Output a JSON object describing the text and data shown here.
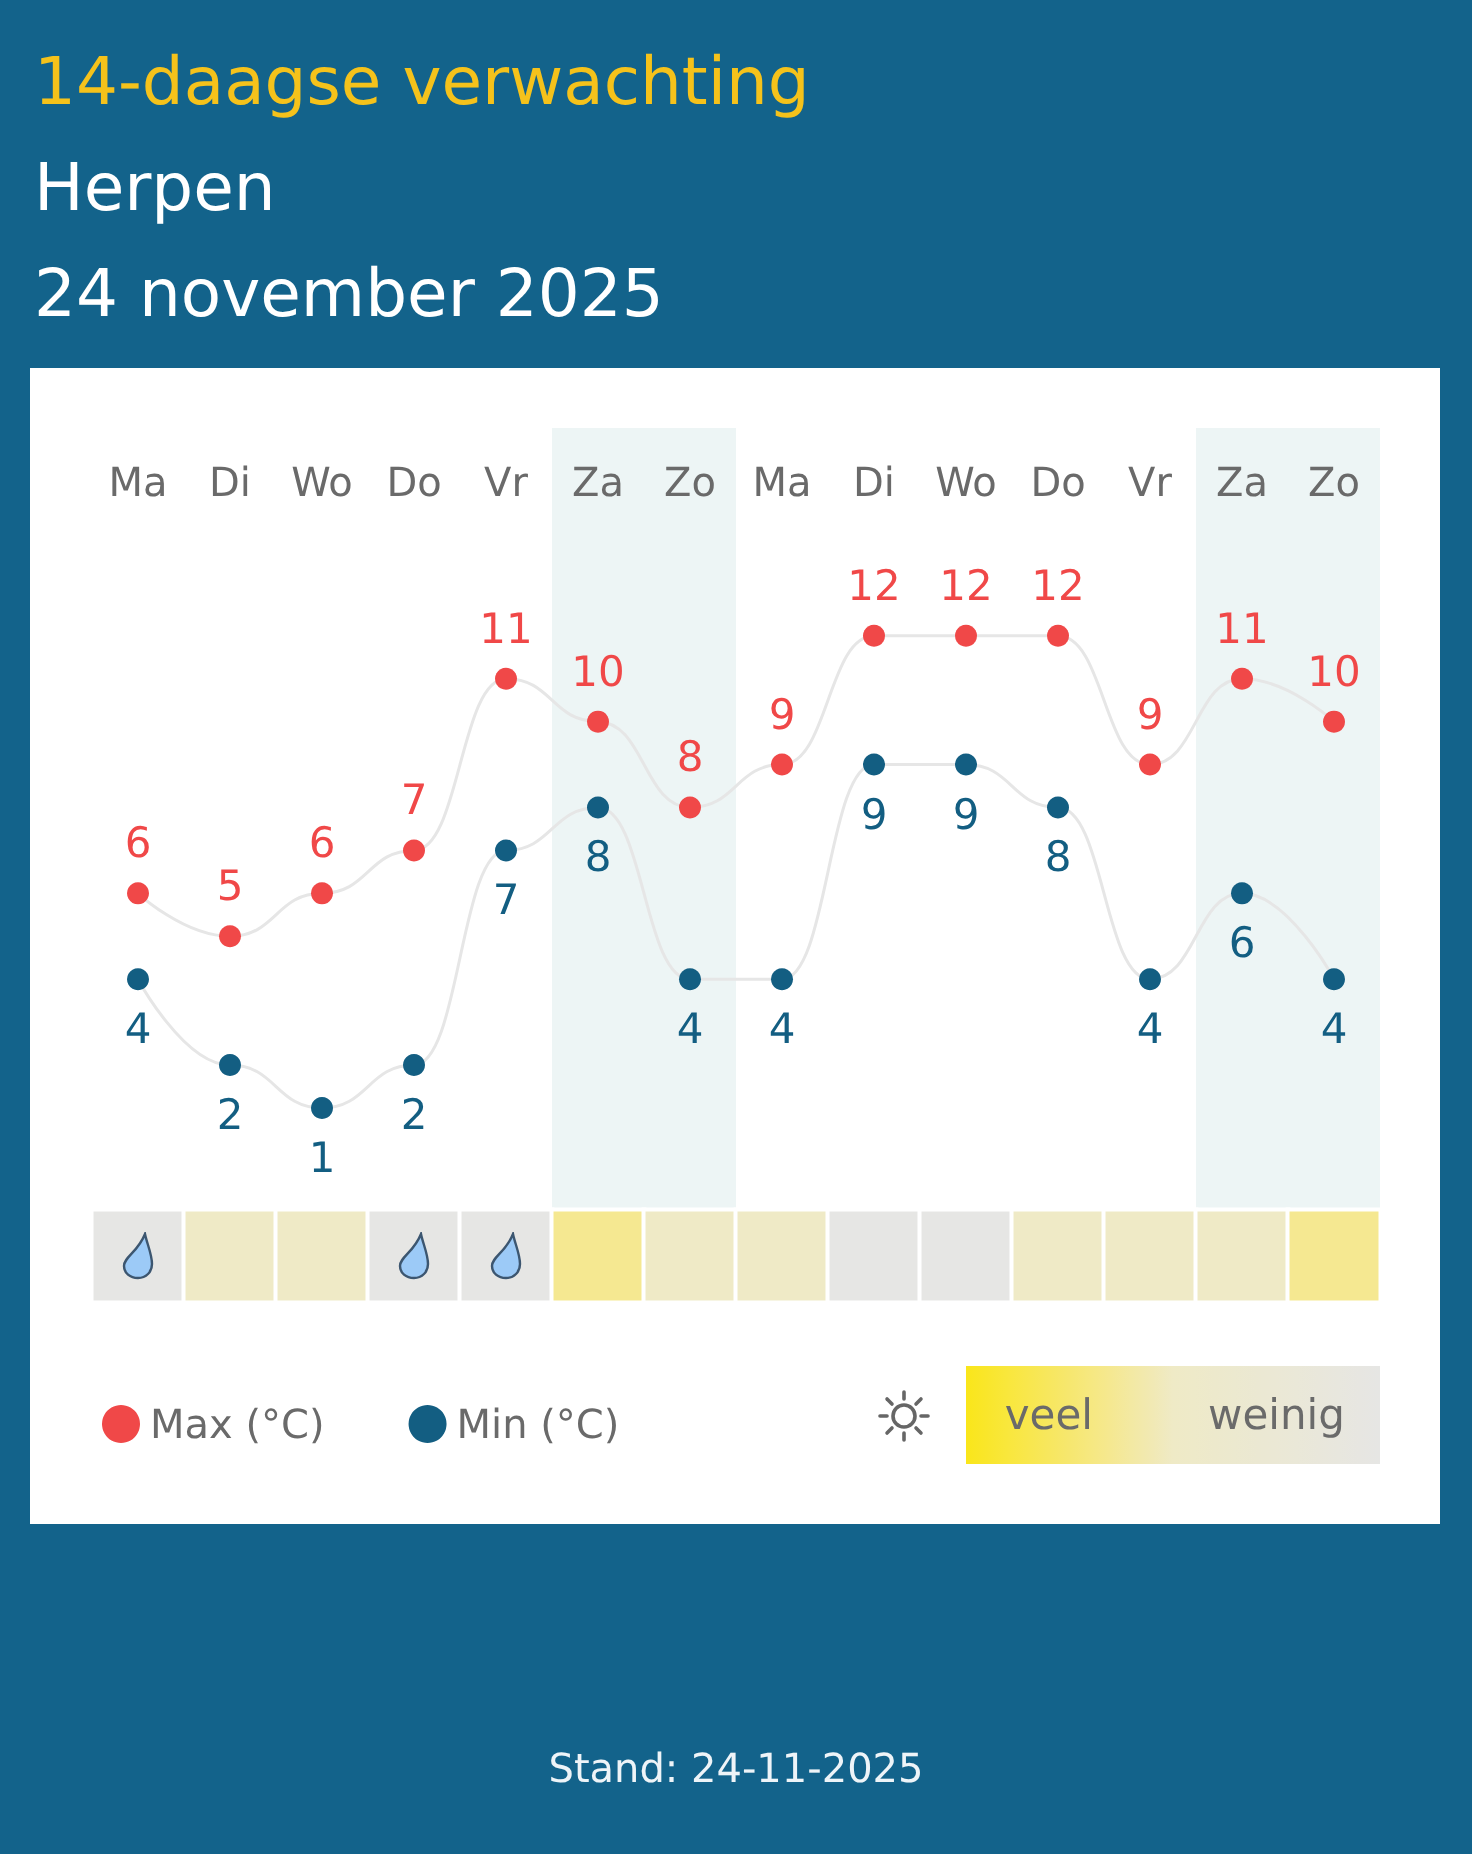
{
  "chart_data": [
    {
      "type": "line",
      "title": "14-daagse verwachting",
      "subtitle": "Herpen\n24 november 2025",
      "categories": [
        "Ma",
        "Di",
        "Wo",
        "Do",
        "Vr",
        "Za",
        "Zo",
        "Ma",
        "Di",
        "Wo",
        "Do",
        "Vr",
        "Za",
        "Zo"
      ],
      "series": [
        {
          "name": "Max (°C)",
          "color": "#f04848",
          "values": [
            6,
            5,
            6,
            7,
            11,
            10,
            8,
            9,
            12,
            12,
            12,
            9,
            11,
            10
          ]
        },
        {
          "name": "Min (°C)",
          "color": "#135e82",
          "values": [
            4,
            2,
            1,
            2,
            7,
            8,
            4,
            4,
            9,
            9,
            8,
            4,
            6,
            4
          ]
        }
      ],
      "data_labels": true,
      "marker": "circle",
      "line_style": "solid",
      "legend": "bottom left",
      "tick_labels": "x",
      "annotations": [
        "Stand: 24-11-2025"
      ]
    },
    {
      "type": "heatmap",
      "categories": [
        null,
        null,
        null,
        null,
        null,
        null,
        null,
        null,
        null,
        null,
        null,
        null,
        null,
        null
      ],
      "y_categories": [
        null
      ],
      "cells": [
        [
          0,
          0.5,
          0.5,
          0,
          0,
          0.65,
          0.5,
          0.5,
          0,
          0,
          0.5,
          0.5,
          0.5,
          0.65
        ]
      ],
      "clim": [
        0,
        1
      ],
      "cticks": [
        {
          "value": 0.8,
          "label": "veel"
        },
        {
          "value": 0.25,
          "label": "weinig"
        }
      ],
      "tick_labels": false
    }
  ]
}
